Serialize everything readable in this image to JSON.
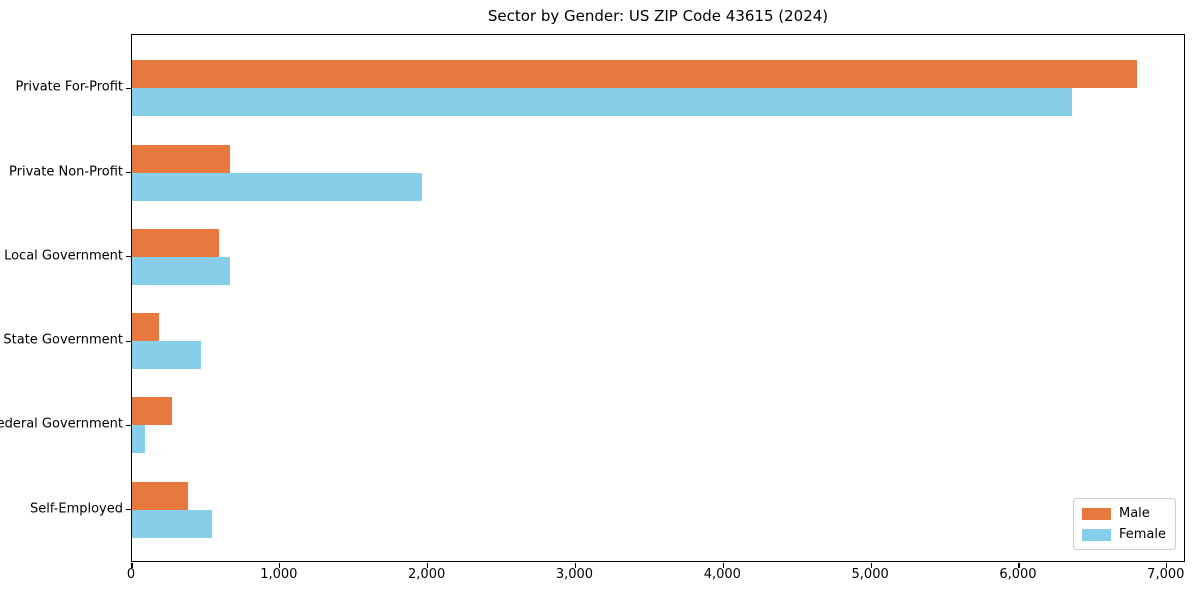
{
  "chart_data": {
    "type": "bar",
    "orientation": "horizontal",
    "title": "Sector by Gender: US ZIP Code 43615 (2024)",
    "categories": [
      "Private For-Profit",
      "Private Non-Profit",
      "Local Government",
      "State Government",
      "Federal Government",
      "Self-Employed"
    ],
    "series": [
      {
        "name": "Male",
        "color": "#e8793e",
        "values": [
          6800,
          660,
          590,
          180,
          270,
          380
        ]
      },
      {
        "name": "Female",
        "color": "#87ceeb",
        "values": [
          6360,
          1960,
          660,
          470,
          90,
          540
        ]
      }
    ],
    "xlabel": "",
    "ylabel": "",
    "xlim": [
      0,
      7130
    ],
    "xticks": [
      0,
      1000,
      2000,
      3000,
      4000,
      5000,
      6000,
      7000
    ],
    "xtick_labels": [
      "0",
      "1,000",
      "2,000",
      "3,000",
      "4,000",
      "5,000",
      "6,000",
      "7,000"
    ],
    "grid": false,
    "legend_position": "lower right"
  }
}
